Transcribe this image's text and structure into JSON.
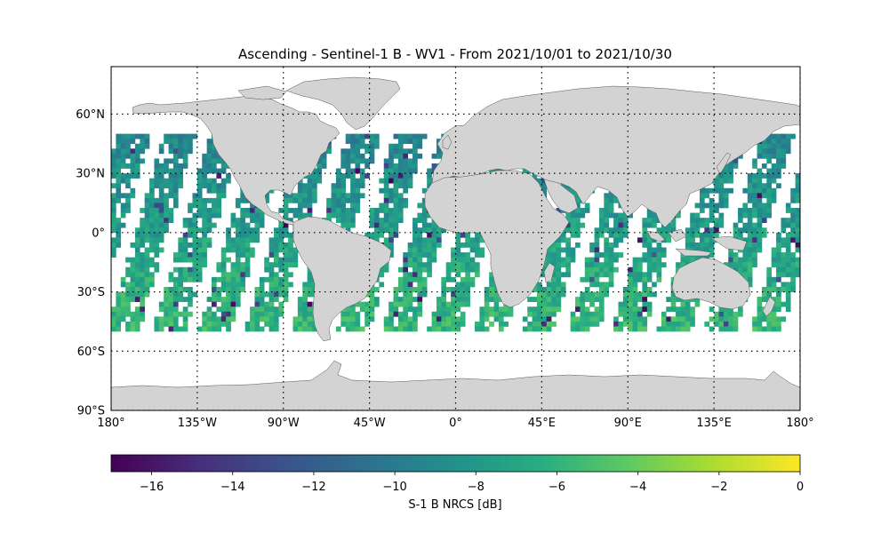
{
  "figure": {
    "title": "Ascending - Sentinel-1 B - WV1 - From 2021/10/01 to 2021/10/30"
  },
  "map": {
    "projection": "plate-carree",
    "extent": {
      "lon": [
        -180,
        180
      ],
      "lat": [
        -90,
        84
      ]
    },
    "land_color": "#d3d3d3",
    "coastline_color": "#555555",
    "gridlines": "dotted",
    "lon_ticks": [
      {
        "lon": -180,
        "label": "180°"
      },
      {
        "lon": -135,
        "label": "135°W"
      },
      {
        "lon": -90,
        "label": "90°W"
      },
      {
        "lon": -45,
        "label": "45°W"
      },
      {
        "lon": 0,
        "label": "0°"
      },
      {
        "lon": 45,
        "label": "45°E"
      },
      {
        "lon": 90,
        "label": "90°E"
      },
      {
        "lon": 135,
        "label": "135°E"
      },
      {
        "lon": 180,
        "label": "180°"
      }
    ],
    "lat_ticks": [
      {
        "lat": 60,
        "label": "60°N"
      },
      {
        "lat": 30,
        "label": "30°N"
      },
      {
        "lat": 0,
        "label": "0°"
      },
      {
        "lat": -30,
        "label": "30°S"
      },
      {
        "lat": -60,
        "label": "60°S"
      },
      {
        "lat": -90,
        "label": "90°S"
      }
    ]
  },
  "chart_data": {
    "type": "heatmap",
    "title": "Ascending - Sentinel-1 B - WV1 - From 2021/10/01 to 2021/10/30",
    "variable": "S-1 B NRCS [dB]",
    "colormap": "viridis",
    "vmin": -17,
    "vmax": 0,
    "data_lat_range": [
      -50,
      50
    ],
    "colorbar": {
      "label": "S-1 B NRCS [dB]",
      "orientation": "horizontal",
      "ticks": [
        -16,
        -14,
        -12,
        -10,
        -8,
        -6,
        -4,
        -2,
        0
      ],
      "tick_labels": [
        "−16",
        "−14",
        "−12",
        "−10",
        "−8",
        "−6",
        "−4",
        "−2",
        "0"
      ]
    }
  }
}
